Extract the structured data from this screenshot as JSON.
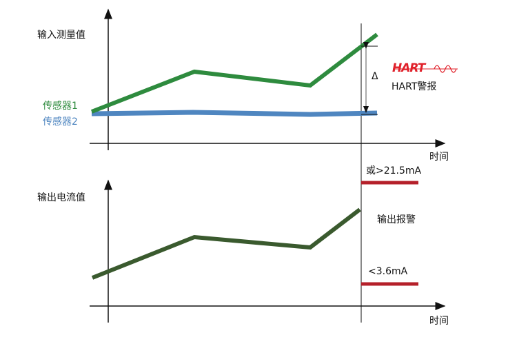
{
  "top": {
    "ylabel": "输入测量值",
    "xlabel": "时间",
    "sensor1": "传感器1",
    "sensor2": "传感器2",
    "delta": "Δ",
    "hart_logo": "HART",
    "hart_alarm": "HART警报"
  },
  "bottom": {
    "ylabel": "输出电流值",
    "xlabel": "时间",
    "high": "或>21.5mA",
    "low": "<3.6mA",
    "alarm": "输出报警"
  },
  "colors": {
    "sensor1": "#2e8b3e",
    "sensor2": "#4f86c0",
    "output": "#3a5a2e",
    "alarm": "#b5202a",
    "hart": "#e0202a"
  }
}
